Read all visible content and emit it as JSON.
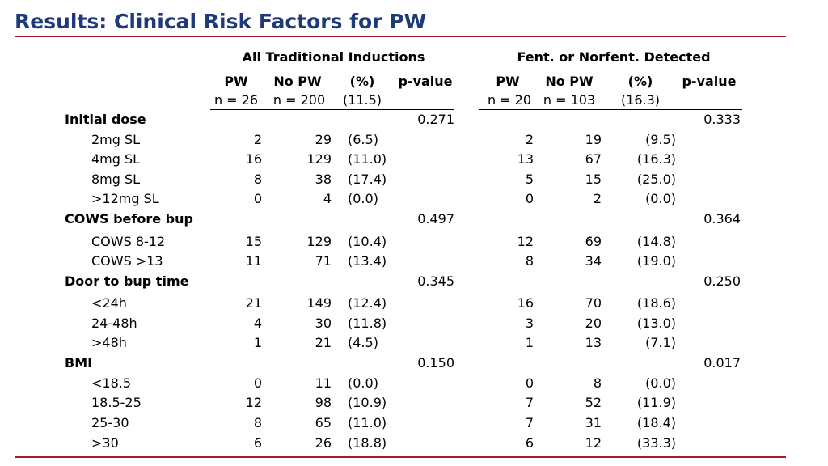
{
  "title": "Results: Clinical Risk Factors for PW",
  "groups": [
    {
      "heading": "All Traditional Inductions",
      "col_pw": "PW",
      "col_nopw": "No PW",
      "col_pct": "(%)",
      "col_p": "p-value",
      "n_pw": "n = 26",
      "n_nopw": "n = 200",
      "n_pct": "(11.5)"
    },
    {
      "heading": "Fent. or Norfent. Detected",
      "col_pw": "PW",
      "col_nopw": "No PW",
      "col_pct": "(%)",
      "col_p": "p-value",
      "n_pw": "n = 20",
      "n_nopw": "n = 103",
      "n_pct": "(16.3)"
    }
  ],
  "rows": [
    {
      "label": "Initial dose",
      "type": "section",
      "p1": "0.271",
      "p2": "0.333"
    },
    {
      "label": "2mg SL",
      "type": "item",
      "a_pw": "2",
      "a_no": "29",
      "a_pct": "(6.5)",
      "b_pw": "2",
      "b_no": "19",
      "b_pct": "(9.5)"
    },
    {
      "label": "4mg SL",
      "type": "item",
      "a_pw": "16",
      "a_no": "129",
      "a_pct": "(11.0)",
      "b_pw": "13",
      "b_no": "67",
      "b_pct": "(16.3)"
    },
    {
      "label": "8mg SL",
      "type": "item",
      "a_pw": "8",
      "a_no": "38",
      "a_pct": "(17.4)",
      "b_pw": "5",
      "b_no": "15",
      "b_pct": "(25.0)"
    },
    {
      "label": ">12mg SL",
      "type": "item",
      "a_pw": "0",
      "a_no": "4",
      "a_pct": "(0.0)",
      "b_pw": "0",
      "b_no": "2",
      "b_pct": "(0.0)"
    },
    {
      "label": "COWS before bup",
      "type": "section",
      "p1": "0.497",
      "p2": "0.364"
    },
    {
      "label": "COWS 8-12",
      "type": "item",
      "a_pw": "15",
      "a_no": "129",
      "a_pct": "(10.4)",
      "b_pw": "12",
      "b_no": "69",
      "b_pct": "(14.8)"
    },
    {
      "label": "COWS >13",
      "type": "item",
      "a_pw": "11",
      "a_no": "71",
      "a_pct": "(13.4)",
      "b_pw": "8",
      "b_no": "34",
      "b_pct": "(19.0)"
    },
    {
      "label": "Door to bup time",
      "type": "section",
      "p1": "0.345",
      "p2": "0.250"
    },
    {
      "label": "<24h",
      "type": "item",
      "a_pw": "21",
      "a_no": "149",
      "a_pct": "(12.4)",
      "b_pw": "16",
      "b_no": "70",
      "b_pct": "(18.6)"
    },
    {
      "label": "24-48h",
      "type": "item",
      "a_pw": "4",
      "a_no": "30",
      "a_pct": "(11.8)",
      "b_pw": "3",
      "b_no": "20",
      "b_pct": "(13.0)"
    },
    {
      "label": ">48h",
      "type": "item",
      "a_pw": "1",
      "a_no": "21",
      "a_pct": "(4.5)",
      "b_pw": "1",
      "b_no": "13",
      "b_pct": "(7.1)"
    },
    {
      "label": "BMI",
      "type": "section",
      "p1": "0.150",
      "p2": "0.017"
    },
    {
      "label": "<18.5",
      "type": "item",
      "a_pw": "0",
      "a_no": "11",
      "a_pct": "(0.0)",
      "b_pw": "0",
      "b_no": "8",
      "b_pct": "(0.0)"
    },
    {
      "label": "18.5-25",
      "type": "item",
      "a_pw": "12",
      "a_no": "98",
      "a_pct": "(10.9)",
      "b_pw": "7",
      "b_no": "52",
      "b_pct": "(11.9)"
    },
    {
      "label": "25-30",
      "type": "item",
      "a_pw": "8",
      "a_no": "65",
      "a_pct": "(11.0)",
      "b_pw": "7",
      "b_no": "31",
      "b_pct": "(18.4)"
    },
    {
      "label": ">30",
      "type": "item",
      "a_pw": "6",
      "a_no": "26",
      "a_pct": "(18.8)",
      "b_pw": "6",
      "b_no": "12",
      "b_pct": "(33.3)"
    }
  ]
}
